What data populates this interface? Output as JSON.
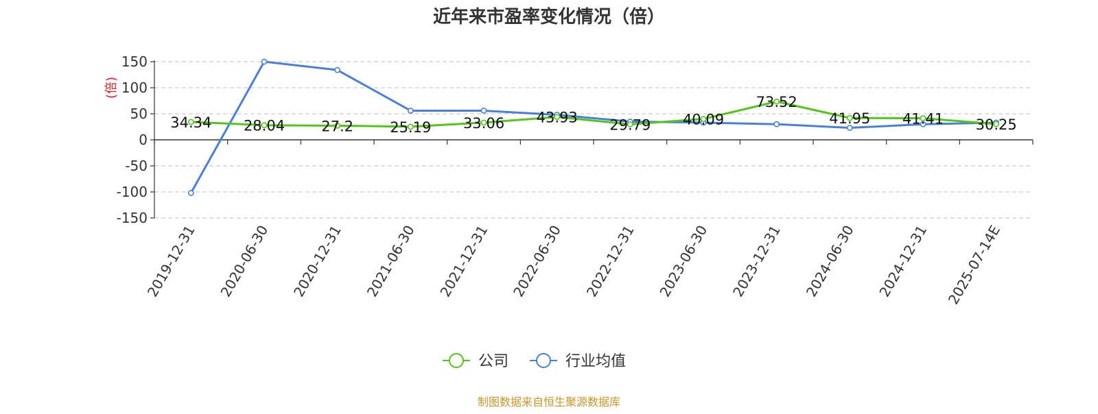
{
  "chart_data": {
    "type": "line",
    "title": "近年来市盈率变化情况（倍）",
    "ylabel": "(倍)",
    "categories": [
      "2019-12-31",
      "2020-06-30",
      "2020-12-31",
      "2021-06-30",
      "2021-12-31",
      "2022-06-30",
      "2022-12-31",
      "2023-06-30",
      "2023-12-31",
      "2024-06-30",
      "2024-12-31",
      "2025-07-14E"
    ],
    "y_ticks": [
      150,
      100,
      50,
      0,
      -50,
      -100,
      -150
    ],
    "ylim": [
      -150,
      150
    ],
    "grid": true,
    "legend_position": "bottom",
    "series": [
      {
        "name": "公司",
        "color": "#52c41a",
        "values": [
          34.34,
          28.04,
          27.2,
          25.19,
          33.06,
          43.93,
          29.79,
          40.09,
          73.52,
          41.95,
          41.41,
          30.25
        ],
        "labels": [
          "34.34",
          "28.04",
          "27.2",
          "25.19",
          "33.06",
          "43.93",
          "29.79",
          "40.09",
          "73.52",
          "41.95",
          "41.41",
          "30.25"
        ]
      },
      {
        "name": "行业均值",
        "color": "#4a7fd9",
        "values": [
          -102,
          150,
          134,
          56,
          56,
          48,
          35,
          33,
          30,
          23,
          30,
          33
        ]
      }
    ]
  },
  "source_text": "制图数据来自恒生聚源数据库",
  "colors": {
    "axis": "#333333",
    "grid": "#cccccc",
    "ylabel": "#e02020",
    "source": "#c8952a"
  }
}
